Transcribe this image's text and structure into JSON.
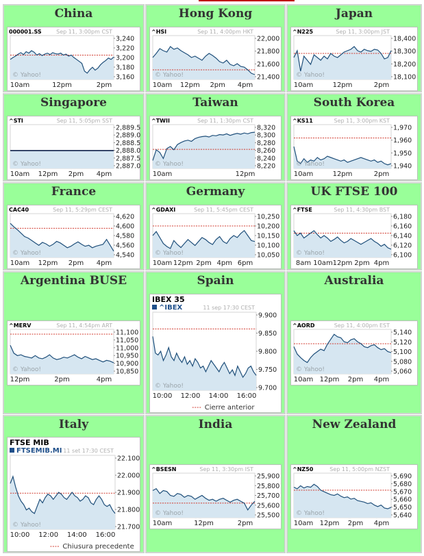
{
  "markets": [
    {
      "id": "china",
      "title": "China",
      "symbol": "000001.SS",
      "meta": "Sep 11, 3:00pm CST",
      "watermark": "© Yahoo!",
      "yticks": [
        "3,240",
        "3,220",
        "3,200",
        "3,180",
        "3,160"
      ],
      "xticks": [
        "10am",
        "12pm",
        "2pm"
      ],
      "chart_data": {
        "type": "line",
        "ylim": [
          3155,
          3245
        ],
        "prev_close": 3205,
        "y": [
          3196,
          3200,
          3203,
          3207,
          3210,
          3206,
          3212,
          3209,
          3214,
          3211,
          3205,
          3208,
          3204,
          3207,
          3209,
          3206,
          3210,
          3208,
          3207,
          3209,
          3205,
          3207,
          3203,
          3205,
          3200,
          3196,
          3192,
          3188,
          3172,
          3168,
          3175,
          3180,
          3174,
          3178,
          3185,
          3190,
          3194,
          3199,
          3196,
          3201
        ]
      }
    },
    {
      "id": "hongkong",
      "title": "Hong Kong",
      "symbol": "^HSI",
      "meta": "Sep 11, 4:00pm HKT",
      "watermark": "© Yahoo!",
      "yticks": [
        "22,000",
        "21,800",
        "21,600",
        "21,400"
      ],
      "xticks": [
        "10am",
        "12pm",
        "2pm",
        "4pm"
      ],
      "chart_data": {
        "type": "line",
        "ylim": [
          21380,
          22020
        ],
        "prev_close": 21520,
        "y": [
          21700,
          21760,
          21830,
          21800,
          21780,
          21860,
          21820,
          21840,
          21800,
          21770,
          21740,
          21700,
          21720,
          21690,
          21660,
          21720,
          21760,
          21730,
          21690,
          21640,
          21620,
          21660,
          21600,
          21580,
          21610,
          21570,
          21560,
          21520,
          21470,
          21450
        ]
      }
    },
    {
      "id": "japan",
      "title": "Japan",
      "symbol": "^N225",
      "meta": "Sep 11, 3:00pm JST",
      "watermark": "© Yahoo!",
      "yticks": [
        "18,400",
        "18,300",
        "18,200",
        "18,100"
      ],
      "xticks": [
        "10am",
        "12pm",
        "2pm"
      ],
      "chart_data": {
        "type": "line",
        "ylim": [
          18090,
          18410
        ],
        "prev_close": 18280,
        "y": [
          18250,
          18300,
          18150,
          18260,
          18230,
          18200,
          18270,
          18250,
          18230,
          18260,
          18240,
          18280,
          18260,
          18250,
          18270,
          18290,
          18300,
          18310,
          18330,
          18300,
          18290,
          18310,
          18300,
          18295,
          18310,
          18305,
          18280,
          18240,
          18250,
          18300
        ]
      }
    },
    {
      "id": "singapore",
      "title": "Singapore",
      "symbol": "^STI",
      "meta": "Sep 11, 5:05pm SST",
      "watermark": "© Yahoo!",
      "yticks": [
        "2,889.5",
        "2,889.0",
        "2,888.5",
        "2,888.0",
        "2,887.5",
        "2,887.0"
      ],
      "xticks": [
        "10am",
        "12pm",
        "2pm",
        "4pm"
      ],
      "chart_data": {
        "type": "line",
        "ylim": [
          2886.9,
          2889.6
        ],
        "prev_close": 2888.0,
        "y": [
          2888.0,
          2888.0,
          2888.0,
          2888.0,
          2888.0,
          2888.0
        ]
      }
    },
    {
      "id": "taiwan",
      "title": "Taiwan",
      "symbol": "^TWII",
      "meta": "Sep 11, 1:30pm CST",
      "watermark": "© Yahoo!",
      "yticks": [
        "8,320",
        "8,300",
        "8,280",
        "8,260",
        "8,240",
        "8,220"
      ],
      "xticks": [
        "10am",
        "12pm"
      ],
      "chart_data": {
        "type": "line",
        "ylim": [
          8215,
          8325
        ],
        "prev_close": 8263,
        "y": [
          8235,
          8262,
          8255,
          8240,
          8265,
          8270,
          8262,
          8275,
          8280,
          8284,
          8286,
          8283,
          8290,
          8293,
          8295,
          8296,
          8294,
          8298,
          8297,
          8300,
          8299,
          8302,
          8298,
          8301,
          8303,
          8301,
          8304,
          8302,
          8305,
          8306
        ]
      }
    },
    {
      "id": "southkorea",
      "title": "South Korea",
      "symbol": "^KS11",
      "meta": "Sep 11, 3:00pm KST",
      "watermark": "© Yahoo!",
      "yticks": [
        "1,970",
        "1,960",
        "1,950",
        "1,940"
      ],
      "xticks": [
        "10am",
        "12pm",
        "2pm"
      ],
      "chart_data": {
        "type": "line",
        "ylim": [
          1937,
          1973
        ],
        "prev_close": 1962,
        "y": [
          1955,
          1943,
          1941,
          1945,
          1942,
          1944,
          1943,
          1946,
          1944,
          1945,
          1947,
          1946,
          1945,
          1944,
          1943,
          1944,
          1942,
          1943,
          1944,
          1945,
          1946,
          1945,
          1944,
          1943,
          1944,
          1942,
          1943,
          1941,
          1940,
          1941
        ]
      }
    },
    {
      "id": "france",
      "title": "France",
      "symbol": "CAC40",
      "meta": "Sep 11, 5:29pm CEST",
      "watermark": "© Yahoo!",
      "yticks": [
        "4,620",
        "4,600",
        "4,580",
        "4,560",
        "4,540"
      ],
      "xticks": [
        "10am",
        "12pm",
        "2pm",
        "4pm"
      ],
      "chart_data": {
        "type": "line",
        "ylim": [
          4535,
          4625
        ],
        "prev_close": 4595,
        "y": [
          4605,
          4598,
          4592,
          4585,
          4578,
          4575,
          4570,
          4565,
          4560,
          4566,
          4563,
          4558,
          4562,
          4568,
          4565,
          4560,
          4555,
          4558,
          4563,
          4567,
          4562,
          4558,
          4560,
          4555,
          4558,
          4560,
          4562,
          4572,
          4560,
          4548
        ]
      }
    },
    {
      "id": "germany",
      "title": "Germany",
      "symbol": "^GDAXI",
      "meta": "Sep 11, 5:45pm CEST",
      "watermark": "© Yahoo!",
      "yticks": [
        "10,250",
        "10,200",
        "10,150",
        "10,100",
        "10,050"
      ],
      "xticks": [
        "10am",
        "12pm",
        "2pm",
        "4pm",
        "6pm"
      ],
      "chart_data": {
        "type": "line",
        "ylim": [
          10040,
          10260
        ],
        "prev_close": 10198,
        "y": [
          10150,
          10170,
          10140,
          10110,
          10095,
          10085,
          10125,
          10105,
          10090,
          10110,
          10130,
          10115,
          10100,
          10120,
          10140,
          10130,
          10115,
          10105,
          10130,
          10145,
          10120,
          10110,
          10135,
          10150,
          10140,
          10160,
          10175,
          10150,
          10125,
          10120
        ]
      }
    },
    {
      "id": "uk",
      "title": "UK FTSE 100",
      "symbol": "^FTSE",
      "meta": "Sep 11, 4:30pm BST",
      "watermark": "© Yahoo!",
      "yticks": [
        "6,180",
        "6,160",
        "6,140",
        "6,120",
        "6,100"
      ],
      "xticks": [
        "8am",
        "10am",
        "12pm",
        "2pm",
        "4pm"
      ],
      "chart_data": {
        "type": "line",
        "ylim": [
          6095,
          6185
        ],
        "prev_close": 6145,
        "y": [
          6150,
          6140,
          6145,
          6135,
          6140,
          6145,
          6150,
          6142,
          6135,
          6140,
          6135,
          6128,
          6132,
          6137,
          6130,
          6125,
          6128,
          6134,
          6130,
          6126,
          6122,
          6126,
          6130,
          6134,
          6128,
          6124,
          6118,
          6122,
          6115,
          6112
        ]
      }
    },
    {
      "id": "argentina",
      "title": "Argentina BUSE",
      "symbol": "^MERV",
      "meta": "Sep 11, 4:54pm ART",
      "watermark": "© Yahoo!",
      "yticks": [
        "11,100",
        "11,050",
        "11,000",
        "10,950",
        "10,900",
        "10,850"
      ],
      "xticks": [
        "12pm",
        "2pm",
        "4pm"
      ],
      "chart_data": {
        "type": "line",
        "ylim": [
          10830,
          11110
        ],
        "prev_close": 11080,
        "y": [
          11010,
          10960,
          10945,
          10950,
          10940,
          10935,
          10930,
          10945,
          10930,
          10925,
          10935,
          10950,
          10930,
          10920,
          10925,
          10935,
          10930,
          10940,
          10950,
          10935,
          10925,
          10940,
          10930,
          10920,
          10925,
          10915,
          10905,
          10915,
          10910,
          10900
        ]
      }
    },
    {
      "id": "spain",
      "title": "Spain",
      "symbol": "IBEX 35",
      "ticker": "^IBEX",
      "meta": "11 sep 17:30 CEST",
      "watermark": "© Yahoo!",
      "legend": "Cierre anterior",
      "yticks": [
        "9.900",
        "9.850",
        "9.800",
        "9.750",
        "9.700"
      ],
      "xticks": [
        "10:00",
        "12:00",
        "14:00",
        "16:00"
      ],
      "chart_data": {
        "type": "line",
        "ylim": [
          9695,
          9905
        ],
        "prev_close": 9860,
        "y": [
          9840,
          9795,
          9790,
          9800,
          9775,
          9790,
          9810,
          9785,
          9775,
          9795,
          9780,
          9770,
          9785,
          9765,
          9775,
          9760,
          9780,
          9770,
          9755,
          9760,
          9745,
          9760,
          9775,
          9765,
          9755,
          9745,
          9760,
          9770,
          9755,
          9740,
          9750,
          9735,
          9760,
          9745,
          9730,
          9740,
          9755,
          9760,
          9745,
          9735
        ]
      }
    },
    {
      "id": "australia",
      "title": "Australia",
      "symbol": "^AORD",
      "meta": "Sep 11, 4:00pm EST",
      "watermark": "© Yahoo!",
      "yticks": [
        "5,140",
        "5,120",
        "5,100",
        "5,080",
        "5,060"
      ],
      "xticks": [
        "10am",
        "12pm",
        "2pm",
        "4pm"
      ],
      "chart_data": {
        "type": "line",
        "ylim": [
          5055,
          5145
        ],
        "prev_close": 5116,
        "y": [
          5110,
          5095,
          5088,
          5082,
          5078,
          5088,
          5095,
          5100,
          5105,
          5102,
          5115,
          5125,
          5135,
          5130,
          5128,
          5120,
          5118,
          5124,
          5126,
          5120,
          5116,
          5110,
          5108,
          5112,
          5114,
          5108,
          5104,
          5106,
          5100,
          5098
        ]
      }
    },
    {
      "id": "italy",
      "title": "Italy",
      "symbol": "FTSE MIB",
      "ticker": "FTSEMIB.MI",
      "meta": "11 set 17:30 CEST",
      "watermark": "© Yahoo!",
      "legend": "Chiusura precedente",
      "yticks": [
        "22.100",
        "22.000",
        "21.900",
        "21.800",
        "21.700"
      ],
      "xticks": [
        "10:00",
        "12:00",
        "14:00",
        "16:00"
      ],
      "chart_data": {
        "type": "line",
        "ylim": [
          21690,
          22110
        ],
        "prev_close": 21895,
        "y": [
          21950,
          21990,
          21930,
          21880,
          21850,
          21830,
          21800,
          21810,
          21790,
          21780,
          21820,
          21860,
          21840,
          21870,
          21890,
          21880,
          21860,
          21880,
          21900,
          21890,
          21870,
          21860,
          21880,
          21900,
          21880,
          21870,
          21850,
          21860,
          21880,
          21870,
          21840,
          21830,
          21860,
          21880,
          21860,
          21830,
          21820,
          21830,
          21800,
          21780
        ]
      }
    },
    {
      "id": "india",
      "title": "India",
      "symbol": "^BSESN",
      "meta": "Sep 11, 3:30pm IST",
      "watermark": "© Yahoo!",
      "yticks": [
        "25,900",
        "25,800",
        "25,700",
        "25,600",
        "25,500"
      ],
      "xticks": [
        "10am",
        "12pm",
        "2pm"
      ],
      "chart_data": {
        "type": "line",
        "ylim": [
          25470,
          25930
        ],
        "prev_close": 25620,
        "y": [
          25750,
          25770,
          25720,
          25750,
          25740,
          25700,
          25690,
          25720,
          25710,
          25680,
          25700,
          25690,
          25660,
          25680,
          25700,
          25670,
          25650,
          25660,
          25640,
          25660,
          25670,
          25650,
          25630,
          25650,
          25660,
          25640,
          25620,
          25550,
          25600,
          25640
        ]
      }
    },
    {
      "id": "newzealand",
      "title": "New Zealand",
      "symbol": "^NZ50",
      "meta": "Sep 11, 5:00pm NZST",
      "watermark": "© Yahoo!",
      "yticks": [
        "5,690",
        "5,680",
        "5,670",
        "5,660",
        "5,650",
        "5,640"
      ],
      "xticks": [
        "10am",
        "12pm",
        "2pm",
        "4pm"
      ],
      "chart_data": {
        "type": "line",
        "ylim": [
          5635,
          5695
        ],
        "prev_close": 5672,
        "y": [
          5676,
          5674,
          5678,
          5675,
          5677,
          5676,
          5680,
          5677,
          5672,
          5670,
          5668,
          5666,
          5665,
          5667,
          5664,
          5662,
          5663,
          5660,
          5661,
          5658,
          5657,
          5656,
          5654,
          5655,
          5652,
          5650,
          5652,
          5648,
          5647,
          5649
        ]
      }
    }
  ]
}
